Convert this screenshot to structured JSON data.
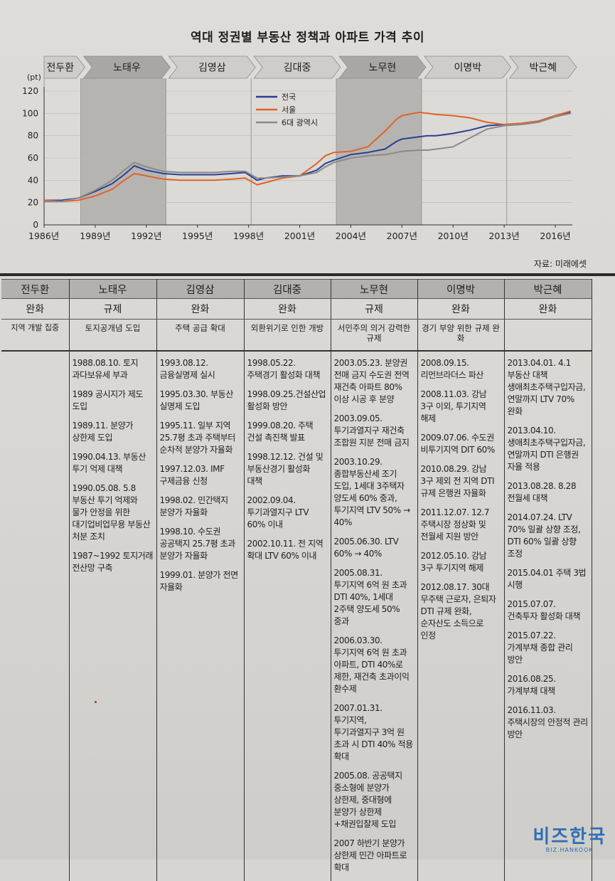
{
  "title": "역대 정권별 부동산 정책과 아파트 가격 추이",
  "source": "자료: 미래에셋",
  "colors": {
    "national": "#2b3f93",
    "seoul": "#e0632a",
    "metro": "#8a8a8a",
    "band_dark": "#b6b4b1",
    "band_light": "#e2e0dc"
  },
  "chart_data": {
    "type": "line",
    "y_unit": "(pt)",
    "ylim": [
      0,
      120
    ],
    "yticks": [
      0,
      20,
      40,
      60,
      80,
      100,
      120
    ],
    "xlim": [
      1986,
      2017
    ],
    "xticks": [
      {
        "year": 1986,
        "label": "1986년"
      },
      {
        "year": 1989,
        "label": "1989년"
      },
      {
        "year": 1992,
        "label": "1992년"
      },
      {
        "year": 1995,
        "label": "1995년"
      },
      {
        "year": 1998,
        "label": "1998년"
      },
      {
        "year": 2001,
        "label": "2001년"
      },
      {
        "year": 2004,
        "label": "2004년"
      },
      {
        "year": 2007,
        "label": "2007년"
      },
      {
        "year": 2010,
        "label": "2010년"
      },
      {
        "year": 2013,
        "label": "2013년"
      },
      {
        "year": 2016,
        "label": "2016년"
      }
    ],
    "eras": [
      {
        "name": "전두환",
        "start": 1986,
        "end": 1988.15,
        "shade": "light"
      },
      {
        "name": "노태우",
        "start": 1988.15,
        "end": 1993.15,
        "shade": "dark"
      },
      {
        "name": "김영삼",
        "start": 1993.15,
        "end": 1998.15,
        "shade": "light"
      },
      {
        "name": "김대중",
        "start": 1998.15,
        "end": 2003.15,
        "shade": "light"
      },
      {
        "name": "노무현",
        "start": 2003.15,
        "end": 2008.15,
        "shade": "dark"
      },
      {
        "name": "이명박",
        "start": 2008.15,
        "end": 2013.15,
        "shade": "light"
      },
      {
        "name": "박근혜",
        "start": 2013.15,
        "end": 2017,
        "shade": "light"
      }
    ],
    "legend_position": "top-center",
    "series": [
      {
        "name": "전국",
        "x": [
          1986,
          1987,
          1988,
          1989,
          1990,
          1990.7,
          1991.3,
          1992,
          1993,
          1994,
          1995,
          1996,
          1997,
          1997.8,
          1998.5,
          1999,
          2000,
          2001,
          2002,
          2002.5,
          2003,
          2004,
          2005,
          2006,
          2006.7,
          2007,
          2008,
          2008.5,
          2009,
          2010,
          2011,
          2012,
          2013,
          2014,
          2015,
          2016,
          2016.9
        ],
        "values": [
          22,
          22,
          24,
          30,
          37,
          45,
          53,
          49,
          46,
          45,
          45,
          45,
          46,
          47,
          40,
          42,
          44,
          44,
          49,
          55,
          58,
          63,
          65,
          68,
          75,
          77,
          79,
          80,
          80,
          82,
          85,
          89,
          90,
          91,
          93,
          98,
          101
        ]
      },
      {
        "name": "서울",
        "x": [
          1986,
          1987,
          1988,
          1989,
          1990,
          1990.7,
          1991.3,
          1992,
          1993,
          1994,
          1995,
          1996,
          1997,
          1997.8,
          1998.5,
          1999,
          2000,
          2001,
          2002,
          2002.5,
          2003,
          2004,
          2005,
          2006,
          2006.7,
          2007,
          2008,
          2008.5,
          2009,
          2010,
          2011,
          2012,
          2013,
          2014,
          2015,
          2016,
          2016.9
        ],
        "values": [
          22,
          21,
          22,
          26,
          32,
          40,
          46,
          44,
          41,
          40,
          40,
          40,
          41,
          42,
          36,
          38,
          42,
          44,
          55,
          62,
          65,
          66,
          70,
          84,
          95,
          98,
          101,
          100,
          99,
          98,
          96,
          92,
          90,
          91,
          93,
          98,
          102
        ]
      },
      {
        "name": "6대 광역시",
        "x": [
          1986,
          1987,
          1988,
          1989,
          1990,
          1990.7,
          1991.3,
          1992,
          1993,
          1994,
          1995,
          1996,
          1997,
          1997.8,
          1998.5,
          1999,
          2000,
          2001,
          2002,
          2002.5,
          2003,
          2004,
          2005,
          2006,
          2006.7,
          2007,
          2008,
          2008.5,
          2009,
          2010,
          2011,
          2012,
          2013,
          2014,
          2015,
          2016,
          2016.9
        ],
        "values": [
          21,
          21,
          24,
          31,
          40,
          49,
          56,
          52,
          48,
          47,
          47,
          47,
          48,
          48,
          42,
          42,
          43,
          44,
          47,
          52,
          56,
          60,
          62,
          63,
          65,
          66,
          67,
          67,
          68,
          70,
          78,
          86,
          89,
          90,
          92,
          97,
          100
        ]
      }
    ]
  },
  "table": {
    "columns": [
      {
        "name": "전두환",
        "stance": "완화",
        "summary": "지역 개발 집중",
        "events": []
      },
      {
        "name": "노태우",
        "stance": "규제",
        "summary": "토지공개념 도입",
        "events": [
          "1988.08.10. 토지 과다보유세 부과",
          "1989 공시지가 제도 도입",
          "1989.11. 분양가 상한제 도입",
          "1990.04.13. 부동산 투기 억제 대책",
          "1990.05.08. 5.8 부동산 투기 억제와 물가 안정을 위한 대기업비업무용 부동산 처분 조치",
          "1987~1992 토지거래 전산망 구축"
        ]
      },
      {
        "name": "김영삼",
        "stance": "완화",
        "summary": "주택 공급 확대",
        "events": [
          "1993.08.12. 금융실명제 실시",
          "1995.03.30. 부동산 실명제 도입",
          "1995.11. 일부 지역 25.7평 초과 주택부터 순차적 분양가 자율화",
          "1997.12.03. IMF 구제금융 신청",
          "1998.02. 민간택지 분양가 자율화",
          "1998.10. 수도권 공공택지 25.7평 초과 분양가 자율화",
          "1999.01. 분양가 전면 자율화"
        ]
      },
      {
        "name": "김대중",
        "stance": "완화",
        "summary": "외환위기로 인한 개방",
        "events": [
          "1998.05.22. 주택경기 활성화 대책",
          "1998.09.25.건설산업 활성화 방안",
          "1999.08.20. 주택 건설 촉진책 발표",
          "1998.12.12. 건설 및 부동산경기 활성화 대책",
          "2002.09.04. 투기과열지구 LTV 60% 이내",
          "2002.10.11. 전 지역 확대 LTV 60% 이내"
        ]
      },
      {
        "name": "노무현",
        "stance": "규제",
        "summary": "서민주의 의거 강력한 규제",
        "events": [
          "2003.05.23. 분양권 전매 금지 수도권 전역 재건축 아파트 80% 이상 시공 후 분양",
          "2003.09.05. 투기과열지구 재건축 조합원 지분 전매 금지",
          "2003.10.29. 종합부동산세 조기 도입, 1세대 3주택자 양도세 60% 중과, 투기지역 LTV 50% → 40%",
          "2005.06.30. LTV 60% → 40%",
          "2005.08.31. 투기지역 6억 원 초과 DTI 40%, 1세대 2주택 양도세 50% 중과",
          "2006.03.30. 투기지역 6억 원 초과 아파트, DTI 40%로 제한, 재건축 초과이익 환수제",
          "2007.01.31. 투기지역, 투기과열지구 3억 원 초과 시 DTI 40% 적용 확대",
          "2005.08. 공공택지 중소형에 분양가 상한제, 중대형에 분양가 상한제+채권입찰제 도입",
          "2007 하반기 분양가 상한제 민간 아파트로 확대"
        ]
      },
      {
        "name": "이명박",
        "stance": "완화",
        "summary": "경기 부양 위한 규제 완화",
        "events": [
          "2008.09.15. 리먼브라더스 파산",
          "2008.11.03. 강남 3구 이외, 투기지역 해제",
          "2009.07.06. 수도권 비투기지역 DIT 60%",
          "2010.08.29. 강남 3구 제외 전 지역 DTI 규제 은행권 자율화",
          "2011.12.07. 12.7 주택시장 정상화 및 전월세 지원 방안",
          "2012.05.10. 강남 3구 투기지역 해제",
          "2012.08.17. 30대 무주택 근로자, 은퇴자 DTI 규제 완화, 순자산도 소득으로 인정"
        ]
      },
      {
        "name": "박근혜",
        "stance": "완화",
        "summary": "",
        "events": [
          "2013.04.01. 4.1 부동산 대책 생애최초주택구입자금, 연말까지 LTV 70% 완화",
          "2013.04.10. 생애최초주택구입자금, 연말까지 DTI 은행권 자율 적용",
          "2013.08.28. 8.28 전월세 대책",
          "2014.07.24. LTV 70% 일괄 상향 조정, DTI 60% 일괄 상향 조정",
          "2015.04.01 주택 3법 시행",
          "2015.07.07. 건축투자 활성화 대책",
          "2015.07.22. 가계부채 종합 관리 방안",
          "2016.08.25. 가계부채 대책",
          "2016.11.03. 주택시장의 안정적 관리 방안"
        ]
      }
    ]
  },
  "watermark": {
    "main": "비즈한국",
    "sub": "BIZ.HANKOOK"
  }
}
